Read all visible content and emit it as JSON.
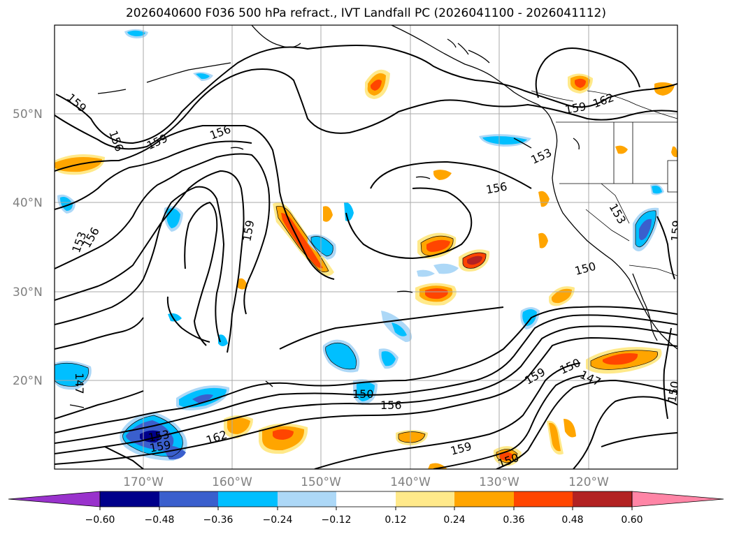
{
  "title": "2026040600 F036 500 hPa refract., IVT Landfall PC (2026041100 - 2026041112)",
  "lat_labels": [
    "50°N",
    "40°N",
    "30°N",
    "20°N"
  ],
  "lon_labels": [
    "170°W",
    "160°W",
    "150°W",
    "140°W",
    "130°W",
    "120°W"
  ],
  "contour_labels": [
    "159",
    "156",
    "159",
    "156",
    "159",
    "156",
    "153",
    "156",
    "159",
    "162",
    "153",
    "153",
    "159",
    "150",
    "150",
    "147",
    "147",
    "150",
    "156",
    "150",
    "159",
    "162",
    "153",
    "159",
    "150",
    "159"
  ],
  "colorbar": {
    "ticks": [
      "−0.60",
      "−0.48",
      "−0.36",
      "−0.24",
      "−0.12",
      "0.12",
      "0.24",
      "0.36",
      "0.48",
      "0.60"
    ],
    "colors": [
      "#9932cc",
      "#00008b",
      "#3a5fcd",
      "#00bfff",
      "#add8f7",
      "#ffffff",
      "#ffe98a",
      "#ffa500",
      "#ff4500",
      "#b22222",
      "#ff85a6"
    ]
  }
}
